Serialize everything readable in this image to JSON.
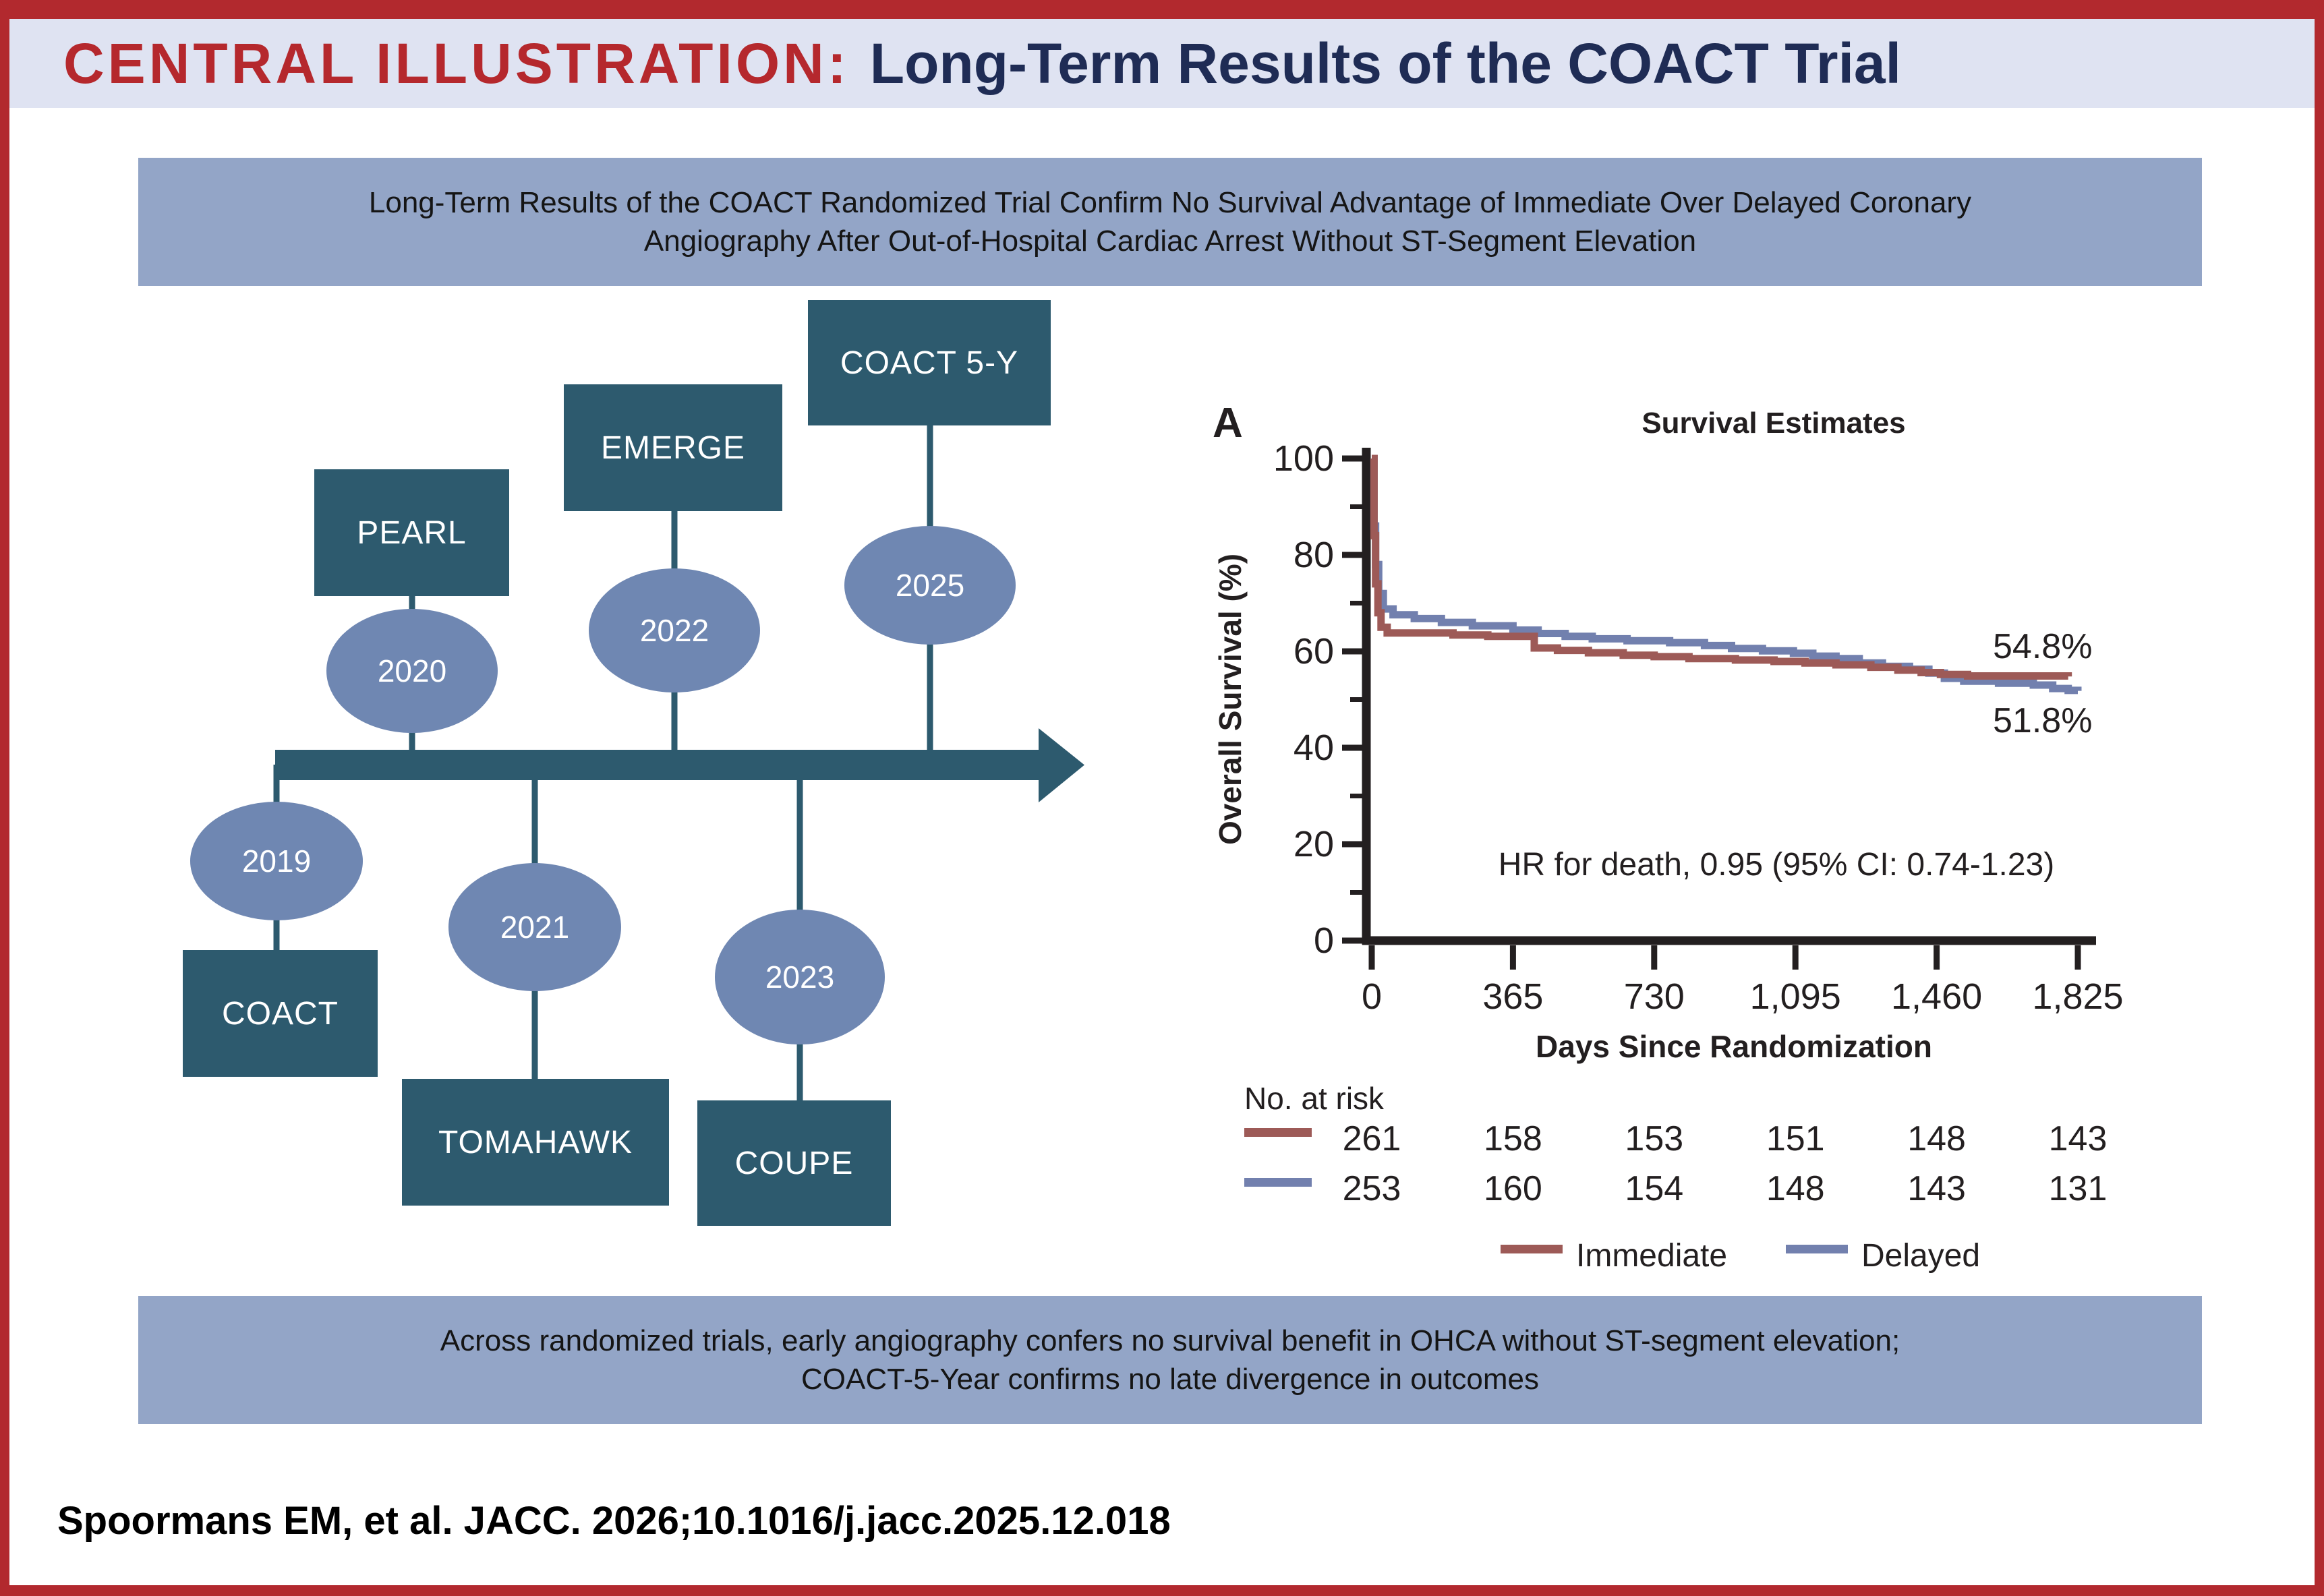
{
  "header": {
    "label": "CENTRAL ILLUSTRATION:",
    "title": "Long-Term Results of the COACT Trial"
  },
  "banners": {
    "top": {
      "line1": "Long-Term Results of the COACT Randomized Trial Confirm No Survival Advantage of Immediate Over Delayed Coronary",
      "line2": "Angiography After Out-of-Hospital Cardiac Arrest Without ST-Segment Elevation"
    },
    "bottom": {
      "line1": "Across randomized trials, early angiography confers no survival benefit in OHCA without ST-segment elevation;",
      "line2": "COACT-5-Year confirms no late divergence in outcomes"
    }
  },
  "timeline": {
    "arrow_direction": "right",
    "events": [
      {
        "trial": "COACT",
        "year": "2019",
        "position": "below"
      },
      {
        "trial": "PEARL",
        "year": "2020",
        "position": "above"
      },
      {
        "trial": "TOMAHAWK",
        "year": "2021",
        "position": "below"
      },
      {
        "trial": "EMERGE",
        "year": "2022",
        "position": "above"
      },
      {
        "trial": "COUPE",
        "year": "2023",
        "position": "below"
      },
      {
        "trial": "COACT 5-Y",
        "year": "2025",
        "position": "above"
      }
    ],
    "colors": {
      "box": "#2d5a6e",
      "year_ellipse": "#6f87b2",
      "arrow": "#2d5a6e"
    }
  },
  "chart_data": {
    "type": "line",
    "panel_label": "A",
    "title": "Survival Estimates",
    "xlabel": "Days Since Randomization",
    "ylabel": "Overall Survival (%)",
    "xlim": [
      0,
      1825
    ],
    "ylim": [
      0,
      100
    ],
    "x_ticks": [
      0,
      365,
      730,
      1095,
      1460,
      1825
    ],
    "x_tick_labels": [
      "0",
      "365",
      "730",
      "1,095",
      "1,460",
      "1,825"
    ],
    "y_ticks": [
      0,
      20,
      40,
      60,
      80,
      100
    ],
    "y_minor_ticks": [
      10,
      30,
      50,
      70,
      90
    ],
    "grid": false,
    "annotation": "HR for death, 0.95 (95% CI: 0.74-1.23)",
    "end_labels": {
      "immediate": "54.8%",
      "delayed": "51.8%"
    },
    "series": [
      {
        "name": "Immediate",
        "color": "#9d5a57",
        "final_value": 54.8,
        "steps": [
          [
            0,
            100
          ],
          [
            6,
            84
          ],
          [
            10,
            74
          ],
          [
            16,
            68
          ],
          [
            24,
            65
          ],
          [
            40,
            63.8
          ],
          [
            210,
            63.4
          ],
          [
            300,
            63.1
          ],
          [
            420,
            60.7
          ],
          [
            480,
            60.2
          ],
          [
            560,
            59.7
          ],
          [
            650,
            59.2
          ],
          [
            730,
            58.9
          ],
          [
            820,
            58.5
          ],
          [
            940,
            58.2
          ],
          [
            1040,
            57.9
          ],
          [
            1120,
            57.6
          ],
          [
            1200,
            57.2
          ],
          [
            1290,
            56.7
          ],
          [
            1360,
            56.1
          ],
          [
            1420,
            55.6
          ],
          [
            1470,
            55.2
          ],
          [
            1540,
            54.9
          ],
          [
            1800,
            54.8
          ]
        ]
      },
      {
        "name": "Delayed",
        "color": "#7280ae",
        "final_value": 51.8,
        "steps": [
          [
            0,
            100
          ],
          [
            6,
            86
          ],
          [
            10,
            78
          ],
          [
            18,
            72
          ],
          [
            30,
            68.8
          ],
          [
            55,
            67.6
          ],
          [
            110,
            66.8
          ],
          [
            180,
            66
          ],
          [
            260,
            65.3
          ],
          [
            365,
            64.4
          ],
          [
            430,
            63.7
          ],
          [
            500,
            63.1
          ],
          [
            570,
            62.6
          ],
          [
            660,
            62.2
          ],
          [
            770,
            61.8
          ],
          [
            860,
            61.2
          ],
          [
            930,
            60.6
          ],
          [
            1010,
            60.1
          ],
          [
            1090,
            59.6
          ],
          [
            1140,
            59
          ],
          [
            1200,
            58.5
          ],
          [
            1260,
            57.6
          ],
          [
            1320,
            56.9
          ],
          [
            1390,
            56.3
          ],
          [
            1440,
            55.5
          ],
          [
            1480,
            54.4
          ],
          [
            1530,
            53.8
          ],
          [
            1620,
            53.4
          ],
          [
            1710,
            53
          ],
          [
            1760,
            52.3
          ],
          [
            1800,
            51.9
          ],
          [
            1825,
            51.8
          ]
        ]
      }
    ],
    "risk_table": {
      "label": "No. at risk",
      "rows": [
        {
          "name": "Immediate",
          "color": "#9d5a57",
          "values": [
            261,
            158,
            153,
            151,
            148,
            143
          ]
        },
        {
          "name": "Delayed",
          "color": "#7280ae",
          "values": [
            253,
            160,
            154,
            148,
            143,
            131
          ]
        }
      ]
    },
    "legend": [
      {
        "label": "Immediate",
        "color": "#9d5a57"
      },
      {
        "label": "Delayed",
        "color": "#7280ae"
      }
    ],
    "legend_position": "bottom"
  },
  "citation": "Spoormans EM, et al. JACC. 2026;10.1016/j.jacc.2025.12.018",
  "colors": {
    "border_red": "#b2292e",
    "header_band": "#dfe3f2",
    "header_red_text": "#b5282d",
    "header_navy_text": "#1f2c55",
    "banner_blue": "#93a5c7",
    "teal": "#2d5a6e",
    "ellipse_blue": "#6f87b2",
    "immediate_line": "#9d5a57",
    "delayed_line": "#7280ae"
  }
}
